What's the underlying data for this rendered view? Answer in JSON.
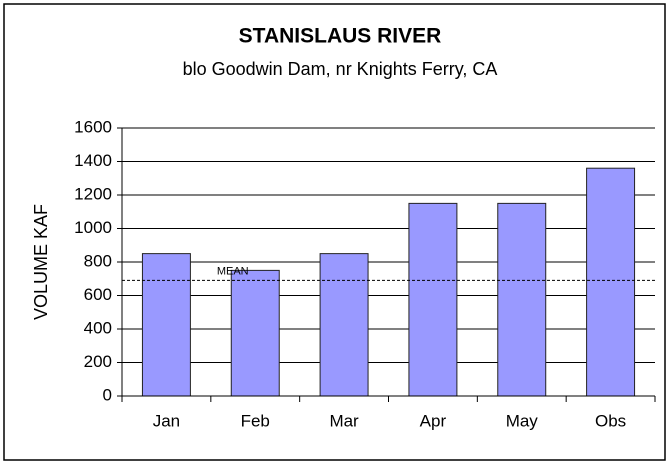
{
  "chart_data": {
    "type": "bar",
    "title": "STANISLAUS RIVER",
    "subtitle": "blo Goodwin Dam, nr Knights Ferry, CA",
    "y_label": "VOLUME KAF",
    "categories": [
      "Jan",
      "Feb",
      "Mar",
      "Apr",
      "May",
      "Obs"
    ],
    "values": [
      850,
      750,
      850,
      1150,
      1150,
      1360
    ],
    "color": "#9999ff",
    "ylim": [
      0,
      1600
    ],
    "yticks": [
      0,
      200,
      400,
      600,
      800,
      1000,
      1200,
      1400,
      1600
    ],
    "grid": true,
    "annotations": [
      {
        "text": "MEAN",
        "y": 690
      }
    ]
  }
}
